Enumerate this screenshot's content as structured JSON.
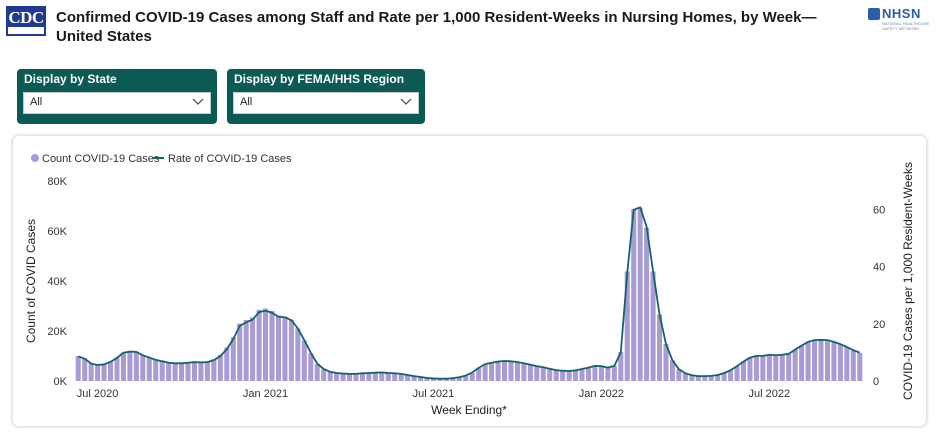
{
  "header": {
    "logo_text": "CDC",
    "title": "Confirmed COVID-19 Cases among Staff and Rate per 1,000 Resident-Weeks in Nursing Homes, by Week— United States",
    "partner_name": "NHSN",
    "partner_subtitle": "NATIONAL HEALTHCARE SAFETY NETWORK"
  },
  "filters": [
    {
      "label": "Display by State",
      "value": "All"
    },
    {
      "label": "Display by FEMA/HHS Region",
      "value": "All"
    }
  ],
  "colors": {
    "bar": "#a99bd3",
    "line": "#14626a",
    "filter_bg": "#0b5a53"
  },
  "chart_data": {
    "type": "bar",
    "legend": {
      "position": "top-left",
      "items": [
        "Count COVID-19 Cases",
        "Rate of COVID-19 Cases"
      ]
    },
    "xlabel": "Week Ending*",
    "ylabel": "Count of COVID Cases",
    "y2label": "COVID-19 Cases per 1,000 Resident-Weeks",
    "ylim": [
      0,
      80000
    ],
    "y2lim": [
      0,
      70
    ],
    "yticks": [
      0,
      20000,
      40000,
      60000,
      80000
    ],
    "ytick_labels": [
      "0K",
      "20K",
      "40K",
      "60K",
      "80K"
    ],
    "y2ticks": [
      0,
      20,
      40,
      60
    ],
    "y2tick_labels": [
      "0",
      "20",
      "40",
      "60"
    ],
    "xtick_labels": [
      "Jul 2020",
      "Jan 2021",
      "Jul 2021",
      "Jan 2022",
      "Jul 2022"
    ],
    "xtick_week_index": [
      3,
      29,
      55,
      81,
      107
    ],
    "grid": false,
    "series": [
      {
        "name": "Count COVID-19 Cases",
        "kind": "bar",
        "axis": "left",
        "values": [
          10000,
          9200,
          7300,
          6600,
          6900,
          7800,
          9400,
          11300,
          11800,
          11600,
          10300,
          9400,
          8600,
          8100,
          7500,
          7300,
          7400,
          7600,
          7900,
          7800,
          7900,
          8700,
          10400,
          13400,
          17500,
          23000,
          24400,
          25500,
          28500,
          29000,
          28000,
          26200,
          25800,
          24500,
          21000,
          16200,
          11100,
          6800,
          4600,
          3500,
          3000,
          2800,
          2600,
          2700,
          2900,
          3000,
          3100,
          3200,
          3000,
          2900,
          2700,
          2300,
          1800,
          1500,
          1200,
          1000,
          900,
          900,
          1100,
          1400,
          2100,
          3300,
          5100,
          6500,
          7100,
          7500,
          7700,
          7600,
          7300,
          6900,
          6400,
          5900,
          5400,
          4800,
          4300,
          4100,
          4000,
          4300,
          4800,
          5400,
          6100,
          6000,
          5400,
          6100,
          11600,
          43800,
          68700,
          69400,
          61300,
          43800,
          26600,
          14800,
          8300,
          4700,
          3100,
          2300,
          1900,
          1900,
          2100,
          2400,
          3200,
          4300,
          5900,
          7800,
          9300,
          10000,
          10000,
          10500,
          10300,
          10500,
          10900,
          12600,
          14100,
          15500,
          16200,
          16300,
          16200,
          15500,
          14600,
          13500,
          12200,
          11200
        ]
      },
      {
        "name": "Rate of COVID-19 Cases",
        "kind": "line",
        "axis": "right",
        "values": [
          8.6,
          7.8,
          6.1,
          5.6,
          5.8,
          6.7,
          8.1,
          9.9,
          10.3,
          10.2,
          9.0,
          8.2,
          7.4,
          6.9,
          6.4,
          6.2,
          6.2,
          6.4,
          6.6,
          6.5,
          6.6,
          7.3,
          8.7,
          11.1,
          14.6,
          19.3,
          20.5,
          21.5,
          24.1,
          24.6,
          23.9,
          22.5,
          22.3,
          21.3,
          18.4,
          14.3,
          9.9,
          6.1,
          4.2,
          3.2,
          2.8,
          2.6,
          2.5,
          2.5,
          2.7,
          2.8,
          2.9,
          3.0,
          2.8,
          2.7,
          2.5,
          2.1,
          1.7,
          1.4,
          1.1,
          0.9,
          0.8,
          0.8,
          1.0,
          1.3,
          1.9,
          3.0,
          4.6,
          5.9,
          6.4,
          6.8,
          7.0,
          6.9,
          6.6,
          6.2,
          5.7,
          5.2,
          4.8,
          4.3,
          3.8,
          3.6,
          3.5,
          3.7,
          4.2,
          4.7,
          5.3,
          5.2,
          4.7,
          5.3,
          10.0,
          37.8,
          59.9,
          60.8,
          54.0,
          38.4,
          23.3,
          12.9,
          7.2,
          4.1,
          2.7,
          2.0,
          1.7,
          1.7,
          1.8,
          2.1,
          2.8,
          3.8,
          5.2,
          6.8,
          8.2,
          8.8,
          8.8,
          9.2,
          9.0,
          9.2,
          9.5,
          11.0,
          12.4,
          13.7,
          14.3,
          14.4,
          14.3,
          13.7,
          12.9,
          11.9,
          10.8,
          9.9
        ]
      }
    ]
  }
}
